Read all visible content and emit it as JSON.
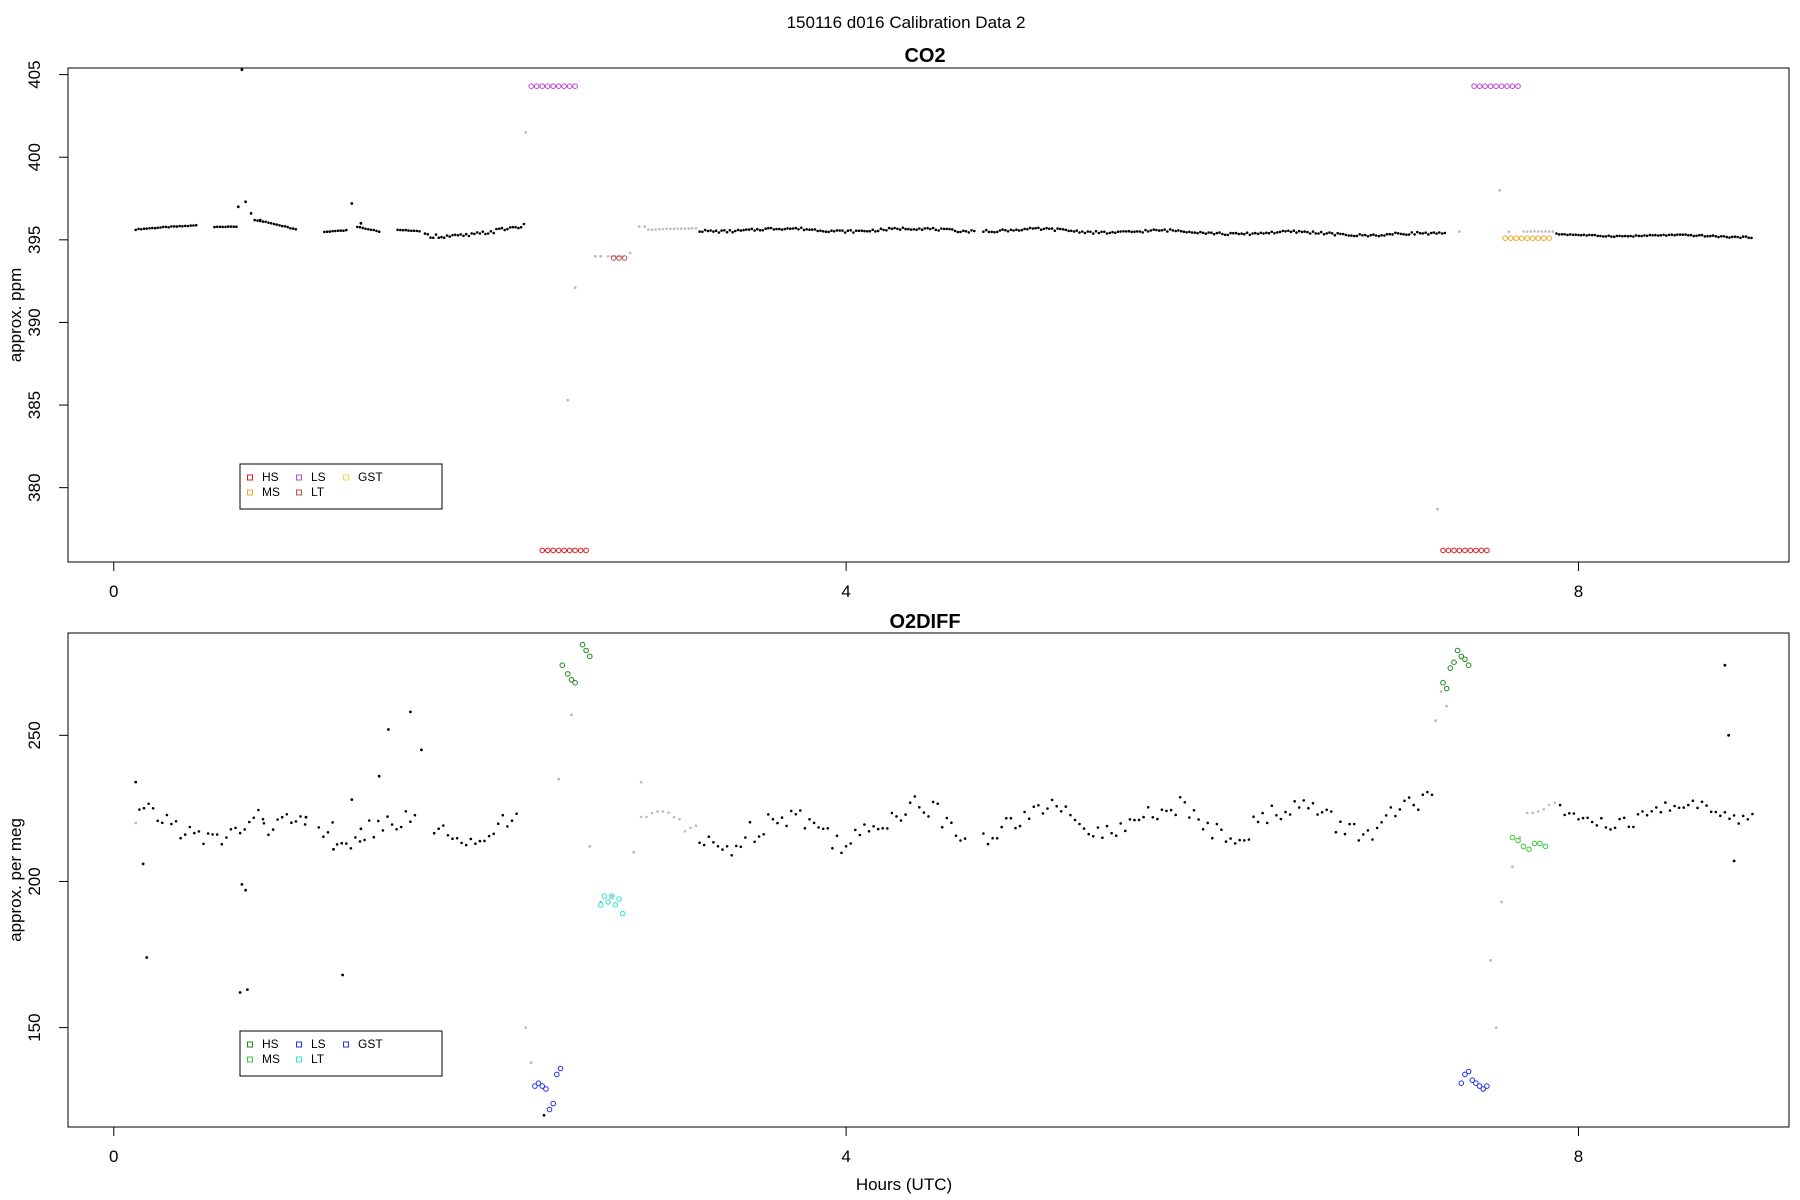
{
  "figure": {
    "title": "150116   d016   Calibration Data 2",
    "xlabel": "Hours (UTC)"
  },
  "chart_data": [
    {
      "type": "scatter",
      "title": "CO2",
      "ylabel": "approx. ppm",
      "xlabel": "Hours (UTC)",
      "xlim": [
        -0.25,
        9.15
      ],
      "ylim": [
        375.5,
        405.4
      ],
      "xticks": [
        0,
        4,
        8
      ],
      "yticks": [
        380,
        385,
        390,
        395,
        400,
        405
      ],
      "grid": false,
      "legend_position": "bottom-left",
      "legend": [
        {
          "label": "HS",
          "color": "#e31a1c"
        },
        {
          "label": "LS",
          "color": "#c040e0"
        },
        {
          "label": "GST",
          "color": "#f0e040"
        },
        {
          "label": "MS",
          "color": "#f5a623"
        },
        {
          "label": "LT",
          "color": "#c0504d"
        }
      ],
      "segments": [
        {
          "color": "#000000",
          "x0": 0.12,
          "x1": 0.45,
          "y0": 395.6,
          "y1": 395.9,
          "step": 0.015,
          "wave": 0.05
        },
        {
          "color": "#000000",
          "x0": 0.55,
          "x1": 0.67,
          "y0": 395.8,
          "y1": 395.8,
          "step": 0.015,
          "wave": 0.03
        },
        {
          "color": "#000000",
          "x0": 0.77,
          "x1": 1.0,
          "y0": 396.2,
          "y1": 395.6,
          "step": 0.015,
          "wave": 0.05
        },
        {
          "color": "#000000",
          "x0": 1.15,
          "x1": 1.28,
          "y0": 395.5,
          "y1": 395.6,
          "step": 0.015,
          "wave": 0.03
        },
        {
          "color": "#000000",
          "x0": 1.33,
          "x1": 1.45,
          "y0": 395.8,
          "y1": 395.5,
          "step": 0.015,
          "wave": 0.03
        },
        {
          "color": "#000000",
          "x0": 1.55,
          "x1": 1.67,
          "y0": 395.6,
          "y1": 395.5,
          "step": 0.015,
          "wave": 0.03
        },
        {
          "color": "#000000",
          "x0": 1.7,
          "x1": 2.24,
          "y0": 395.2,
          "y1": 395.7,
          "step": 0.015,
          "wave": 0.25
        },
        {
          "color": "#000000",
          "x0": 3.2,
          "x1": 4.7,
          "y0": 395.6,
          "y1": 395.6,
          "step": 0.015,
          "wave": 0.15
        },
        {
          "color": "#000000",
          "x0": 4.75,
          "x1": 7.28,
          "y0": 395.6,
          "y1": 395.3,
          "step": 0.015,
          "wave": 0.15
        },
        {
          "color": "#000000",
          "x0": 7.88,
          "x1": 8.95,
          "y0": 395.3,
          "y1": 395.2,
          "step": 0.015,
          "wave": 0.08
        },
        {
          "color": "#bbbbbb",
          "x0": 2.7,
          "x1": 2.78,
          "y0": 394.0,
          "y1": 394.0,
          "step": 0.02,
          "wave": 0.02
        },
        {
          "color": "#bbbbbb",
          "x0": 2.92,
          "x1": 3.18,
          "y0": 395.6,
          "y1": 395.7,
          "step": 0.02,
          "wave": 0.03
        },
        {
          "color": "#bbbbbb",
          "x0": 7.7,
          "x1": 7.86,
          "y0": 395.5,
          "y1": 395.5,
          "step": 0.02,
          "wave": 0.02
        }
      ],
      "points": [
        {
          "color": "#000000",
          "x": [
            0.68,
            0.72,
            0.7,
            0.75,
            0.8,
            1.3,
            1.35
          ],
          "y": [
            397.0,
            397.3,
            405.3,
            396.6,
            396.2,
            397.2,
            396.0
          ]
        },
        {
          "color": "#bbbbbb",
          "x": [
            2.25,
            2.48,
            2.52,
            2.63,
            2.66,
            2.82,
            2.87,
            2.9,
            7.23,
            7.35,
            7.57,
            7.62
          ],
          "y": [
            401.5,
            385.3,
            392.1,
            394.0,
            394.0,
            394.2,
            395.8,
            395.8,
            378.7,
            395.5,
            398.0,
            395.5
          ]
        },
        {
          "color": "#e31a1c",
          "x": [
            2.34,
            2.37,
            2.4,
            2.43,
            2.46,
            2.49,
            2.52,
            2.55,
            2.58,
            7.26,
            7.29,
            7.32,
            7.35,
            7.38,
            7.41,
            7.44,
            7.47,
            7.5
          ],
          "y": [
            376.2,
            376.2,
            376.2,
            376.2,
            376.2,
            376.2,
            376.2,
            376.2,
            376.2,
            376.2,
            376.2,
            376.2,
            376.2,
            376.2,
            376.2,
            376.2,
            376.2,
            376.2
          ]
        },
        {
          "color": "#c040e0",
          "x": [
            2.28,
            2.31,
            2.34,
            2.37,
            2.4,
            2.43,
            2.46,
            2.49,
            2.52,
            7.43,
            7.46,
            7.49,
            7.52,
            7.55,
            7.58,
            7.61,
            7.64,
            7.67
          ],
          "y": [
            404.3,
            404.3,
            404.3,
            404.3,
            404.3,
            404.3,
            404.3,
            404.3,
            404.3,
            404.3,
            404.3,
            404.3,
            404.3,
            404.3,
            404.3,
            404.3,
            404.3,
            404.3
          ]
        },
        {
          "color": "#c0504d",
          "x": [
            2.73,
            2.76,
            2.79
          ],
          "y": [
            393.9,
            393.9,
            393.9
          ]
        },
        {
          "color": "#f5a623",
          "x": [
            7.6,
            7.63,
            7.66,
            7.69,
            7.72,
            7.75,
            7.78,
            7.81,
            7.84
          ],
          "y": [
            395.1,
            395.1,
            395.1,
            395.1,
            395.1,
            395.1,
            395.1,
            395.1,
            395.1
          ]
        }
      ]
    },
    {
      "type": "scatter",
      "title": "O2DIFF",
      "ylabel": "approx. per meg",
      "xlabel": "Hours (UTC)",
      "xlim": [
        -0.25,
        9.15
      ],
      "ylim": [
        116,
        285
      ],
      "xticks": [
        0,
        4,
        8
      ],
      "yticks": [
        150,
        200,
        250
      ],
      "grid": false,
      "legend_position": "bottom-left",
      "legend": [
        {
          "label": "HS",
          "color": "#1a8a1a"
        },
        {
          "label": "LS",
          "color": "#2233ee"
        },
        {
          "label": "GST",
          "color": "#2233ee"
        },
        {
          "label": "MS",
          "color": "#33cc33"
        },
        {
          "label": "LT",
          "color": "#33dddd"
        }
      ],
      "segments": [
        {
          "color": "#000000",
          "x0": 0.14,
          "x1": 0.82,
          "y0": 219,
          "y1": 218,
          "step": 0.025,
          "wave": 7
        },
        {
          "color": "#000000",
          "x0": 0.82,
          "x1": 1.05,
          "y0": 215,
          "y1": 219,
          "step": 0.025,
          "wave": 6
        },
        {
          "color": "#000000",
          "x0": 1.12,
          "x1": 1.65,
          "y0": 222,
          "y1": 215,
          "step": 0.025,
          "wave": 9
        },
        {
          "color": "#000000",
          "x0": 1.75,
          "x1": 2.22,
          "y0": 218,
          "y1": 219,
          "step": 0.025,
          "wave": 6
        },
        {
          "color": "#000000",
          "x0": 3.2,
          "x1": 4.65,
          "y0": 216,
          "y1": 222,
          "step": 0.025,
          "wave": 9
        },
        {
          "color": "#000000",
          "x0": 4.75,
          "x1": 7.22,
          "y0": 220,
          "y1": 222,
          "step": 0.025,
          "wave": 8
        },
        {
          "color": "#000000",
          "x0": 7.9,
          "x1": 8.95,
          "y0": 221,
          "y1": 225,
          "step": 0.025,
          "wave": 5
        },
        {
          "color": "#bbbbbb",
          "x0": 2.88,
          "x1": 3.18,
          "y0": 219,
          "y1": 218,
          "step": 0.03,
          "wave": 5
        },
        {
          "color": "#bbbbbb",
          "x0": 7.72,
          "x1": 7.88,
          "y0": 222,
          "y1": 225,
          "step": 0.03,
          "wave": 3
        }
      ],
      "points": [
        {
          "color": "#000000",
          "x": [
            0.12,
            0.16,
            0.18,
            0.7,
            0.72,
            0.69,
            0.73,
            1.25,
            1.45,
            1.62,
            1.5,
            1.68,
            2.35,
            8.8,
            8.82,
            8.85,
            1.05,
            1.2,
            1.3,
            1.35
          ],
          "y": [
            234,
            206,
            174,
            199,
            197,
            162,
            163,
            168,
            236,
            258,
            252,
            245,
            120,
            274,
            250,
            207,
            222,
            211,
            228,
            218
          ]
        },
        {
          "color": "#bbbbbb",
          "x": [
            0.12,
            2.25,
            2.28,
            2.43,
            2.5,
            2.6,
            2.66,
            2.72,
            2.84,
            2.88,
            7.22,
            7.25,
            7.28,
            7.52,
            7.55,
            7.58,
            7.64,
            7.68
          ],
          "y": [
            220,
            150,
            138,
            235,
            257,
            212,
            193,
            195,
            210,
            234,
            255,
            265,
            260,
            173,
            150,
            193,
            205,
            215
          ]
        },
        {
          "color": "#1a8a1a",
          "x": [
            2.45,
            2.48,
            2.5,
            2.52,
            2.56,
            2.58,
            2.6,
            7.26,
            7.28,
            7.3,
            7.32,
            7.34,
            7.36,
            7.38,
            7.4
          ],
          "y": [
            274,
            271,
            269,
            268,
            281,
            279,
            277,
            268,
            266,
            273,
            275,
            279,
            277,
            276,
            274
          ]
        },
        {
          "color": "#2233ee",
          "x": [
            2.3,
            2.32,
            2.34,
            2.36,
            2.38,
            2.4,
            2.42,
            2.44,
            7.36,
            7.38,
            7.4,
            7.42,
            7.44,
            7.46,
            7.48,
            7.5
          ],
          "y": [
            130,
            131,
            130,
            129,
            122,
            124,
            134,
            136,
            131,
            134,
            135,
            132,
            131,
            130,
            129,
            130
          ]
        },
        {
          "color": "#33dddd",
          "x": [
            2.66,
            2.68,
            2.7,
            2.72,
            2.74,
            2.76,
            2.78
          ],
          "y": [
            192,
            195,
            193,
            195,
            192,
            194,
            189
          ]
        },
        {
          "color": "#33cc33",
          "x": [
            7.64,
            7.67,
            7.7,
            7.73,
            7.76,
            7.79,
            7.82
          ],
          "y": [
            215,
            214,
            212,
            211,
            213,
            213,
            212
          ]
        }
      ]
    }
  ]
}
